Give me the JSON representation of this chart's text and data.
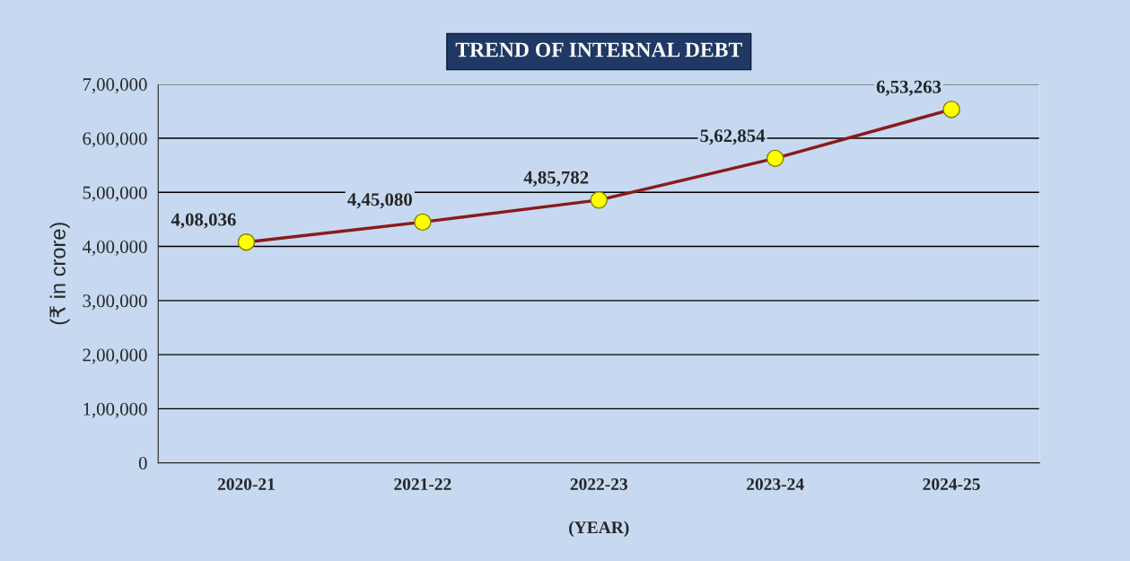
{
  "chart_data": {
    "type": "line",
    "title": "TREND OF INTERNAL DEBT",
    "xlabel": "(YEAR)",
    "ylabel": "(₹ in crore)",
    "categories": [
      "2020-21",
      "2021-22",
      "2022-23",
      "2023-24",
      "2024-25"
    ],
    "series": [
      {
        "color": "#8b1a1a",
        "values": [
          408036,
          445080,
          485782,
          562854,
          653263
        ],
        "value_labels": [
          "4,08,036",
          "4,45,080",
          "4,85,782",
          "5,62,854",
          "6,53,263"
        ]
      }
    ],
    "ylim": [
      0,
      700000
    ],
    "yticks": [
      {
        "value": 0,
        "label": "0"
      },
      {
        "value": 100000,
        "label": "1,00,000"
      },
      {
        "value": 200000,
        "label": "2,00,000"
      },
      {
        "value": 300000,
        "label": "3,00,000"
      },
      {
        "value": 400000,
        "label": "4,00,000"
      },
      {
        "value": 500000,
        "label": "5,00,000"
      },
      {
        "value": 600000,
        "label": "6,00,000"
      },
      {
        "value": 700000,
        "label": "7,00,000"
      }
    ],
    "grid": "y",
    "marker": "circle",
    "line_style": "solid",
    "legend": false
  }
}
